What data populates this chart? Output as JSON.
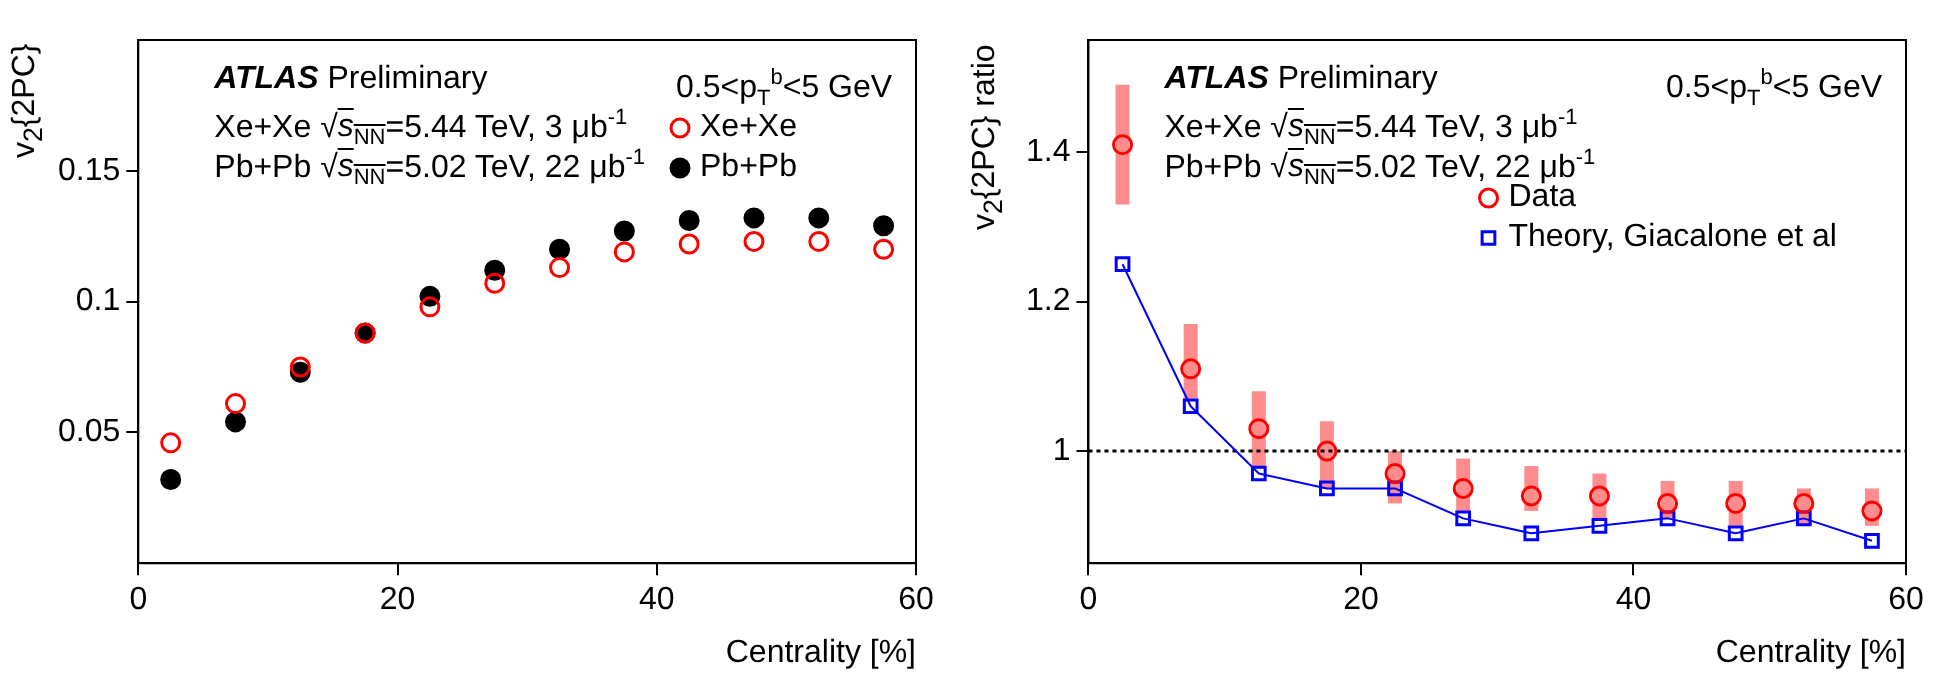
{
  "chart_data": [
    {
      "type": "scatter",
      "xlabel": "Centrality [%]",
      "ylabel": "v$_{2}${2PC}",
      "x": [
        2.5,
        7.5,
        12.5,
        17.5,
        22.5,
        27.5,
        32.5,
        37.5,
        42.5,
        47.5,
        52.5,
        57.5
      ],
      "xlim": [
        0,
        60
      ],
      "xticks": [
        0,
        20,
        40,
        60
      ],
      "ylim": [
        0,
        0.2
      ],
      "yticks": [
        {
          "value": 0.05,
          "label": "0.05"
        },
        {
          "value": 0.1,
          "label": "0.1"
        },
        {
          "value": 0.15,
          "label": "0.15"
        }
      ],
      "grid": false,
      "legend": "top right",
      "annotations": [
        "ATLAS Preliminary",
        "Xe+Xe √s$_{NN}$=5.44 TeV, 3 μb$^{-1}$",
        "Pb+Pb √s$_{NN}$=5.02 TeV, 22 μb$^{-1}$",
        "0.5<p$_{T}$$^{b}$<5 GeV"
      ],
      "series": [
        {
          "name": "Xe+Xe",
          "color": "#ff0000",
          "marker": "circle",
          "values": [
            0.046,
            0.061,
            0.075,
            0.088,
            0.098,
            0.107,
            0.113,
            0.119,
            0.122,
            0.123,
            0.123,
            0.12
          ]
        },
        {
          "name": "Pb+Pb",
          "color": "#000000",
          "marker": "circle",
          "values": [
            0.032,
            0.054,
            0.073,
            0.088,
            0.102,
            0.112,
            0.12,
            0.127,
            0.131,
            0.132,
            0.132,
            0.129
          ]
        }
      ]
    },
    {
      "type": "scatter",
      "xlabel": "Centrality [%]",
      "ylabel": "v$_{2}${2PC} ratio",
      "x": [
        2.5,
        7.5,
        12.5,
        17.5,
        22.5,
        27.5,
        32.5,
        37.5,
        42.5,
        47.5,
        52.5,
        57.5
      ],
      "xlim": [
        0,
        60
      ],
      "xticks": [
        0,
        20,
        40,
        60
      ],
      "ylim": [
        0.85,
        1.55
      ],
      "yticks": [
        {
          "value": 1,
          "label": "1"
        },
        {
          "value": 1.2,
          "label": "1.2"
        },
        {
          "value": 1.4,
          "label": "1.4"
        }
      ],
      "grid": false,
      "legend": "right",
      "annotations": [
        "ATLAS Preliminary",
        "Xe+Xe √s$_{NN}$=5.44 TeV, 3 μb$^{-1}$",
        "Pb+Pb √s$_{NN}$=5.02 TeV, 22 μb$^{-1}$",
        "0.5<p$_{T}$$^{b}$<5 GeV"
      ],
      "ref_lines": [
        {
          "axis": "y",
          "value": 1,
          "color": "#000000",
          "line_style": "dotted"
        }
      ],
      "series": [
        {
          "name": "Data",
          "color": "#ff0000",
          "marker": "circle",
          "values": [
            1.41,
            1.11,
            1.03,
            1.0,
            0.97,
            0.95,
            0.94,
            0.94,
            0.93,
            0.93,
            0.93,
            0.92
          ],
          "errors": [
            [
              1.33,
              1.49
            ],
            [
              1.07,
              1.17
            ],
            [
              0.98,
              1.08
            ],
            [
              0.95,
              1.04
            ],
            [
              0.93,
              1.0
            ],
            [
              0.92,
              0.99
            ],
            [
              0.92,
              0.98
            ],
            [
              0.91,
              0.97
            ],
            [
              0.91,
              0.96
            ],
            [
              0.9,
              0.96
            ],
            [
              0.9,
              0.95
            ],
            [
              0.9,
              0.95
            ]
          ]
        },
        {
          "name": "Theory, Giacalone et al",
          "type": "line",
          "color": "#0000ff",
          "marker": "square",
          "line_style": "solid",
          "values": [
            1.25,
            1.06,
            0.97,
            0.95,
            0.95,
            0.91,
            0.89,
            0.9,
            0.91,
            0.89,
            0.91,
            0.88
          ]
        }
      ]
    }
  ]
}
